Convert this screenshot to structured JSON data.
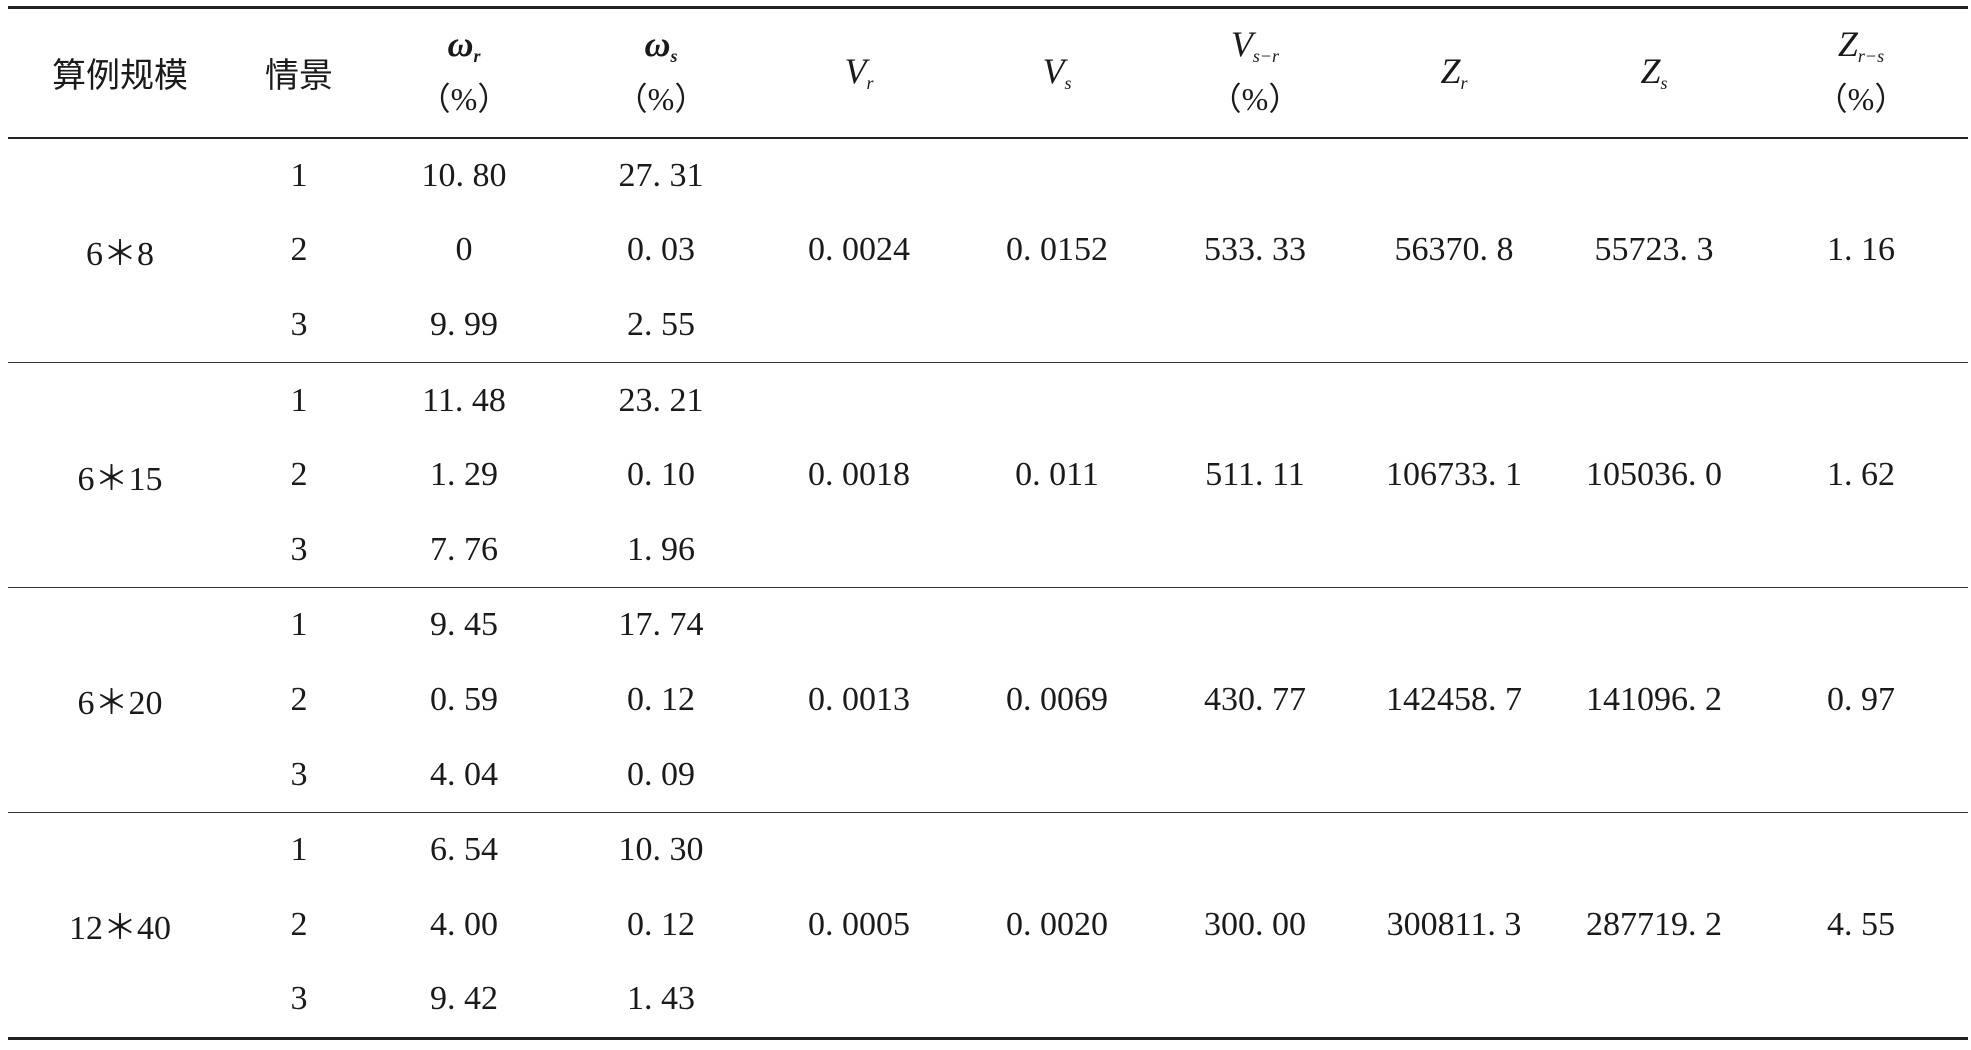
{
  "header": {
    "scale_label": "算例规模",
    "scenario_label": "情景",
    "wr_symbol": "ω",
    "wr_sub": "r",
    "wr_unit": "（%）",
    "ws_symbol": "ω",
    "ws_sub": "s",
    "ws_unit": "（%）",
    "vr_symbol": "V",
    "vr_sub": "r",
    "vs_symbol": "V",
    "vs_sub": "s",
    "vsr_symbol": "V",
    "vsr_sub": "s−r",
    "vsr_unit": "（%）",
    "zr_symbol": "Z",
    "zr_sub": "r",
    "zs_symbol": "Z",
    "zs_sub": "s",
    "zrs_symbol": "Z",
    "zrs_sub": "r−s",
    "zrs_unit": "（%）"
  },
  "groups": [
    {
      "scale": "6＊8",
      "vr": "0. 0024",
      "vs": "0. 0152",
      "vsr": "533. 33",
      "zr": "56370. 8",
      "zs": "55723. 3",
      "zrs": "1. 16",
      "rows": [
        {
          "scenario": "1",
          "wr": "10. 80",
          "ws": "27. 31"
        },
        {
          "scenario": "2",
          "wr": "0",
          "ws": "0. 03"
        },
        {
          "scenario": "3",
          "wr": "9. 99",
          "ws": "2. 55"
        }
      ]
    },
    {
      "scale": "6＊15",
      "vr": "0. 0018",
      "vs": "0. 011",
      "vsr": "511. 11",
      "zr": "106733. 1",
      "zs": "105036. 0",
      "zrs": "1. 62",
      "rows": [
        {
          "scenario": "1",
          "wr": "11. 48",
          "ws": "23. 21"
        },
        {
          "scenario": "2",
          "wr": "1. 29",
          "ws": "0. 10"
        },
        {
          "scenario": "3",
          "wr": "7. 76",
          "ws": "1. 96"
        }
      ]
    },
    {
      "scale": "6＊20",
      "vr": "0. 0013",
      "vs": "0. 0069",
      "vsr": "430. 77",
      "zr": "142458. 7",
      "zs": "141096. 2",
      "zrs": "0. 97",
      "rows": [
        {
          "scenario": "1",
          "wr": "9. 45",
          "ws": "17. 74"
        },
        {
          "scenario": "2",
          "wr": "0. 59",
          "ws": "0. 12"
        },
        {
          "scenario": "3",
          "wr": "4. 04",
          "ws": "0. 09"
        }
      ]
    },
    {
      "scale": "12＊40",
      "vr": "0. 0005",
      "vs": "0. 0020",
      "vsr": "300. 00",
      "zr": "300811. 3",
      "zs": "287719. 2",
      "zrs": "4. 55",
      "rows": [
        {
          "scenario": "1",
          "wr": "6. 54",
          "ws": "10. 30"
        },
        {
          "scenario": "2",
          "wr": "4. 00",
          "ws": "0. 12"
        },
        {
          "scenario": "3",
          "wr": "9. 42",
          "ws": "1. 43"
        }
      ]
    }
  ]
}
